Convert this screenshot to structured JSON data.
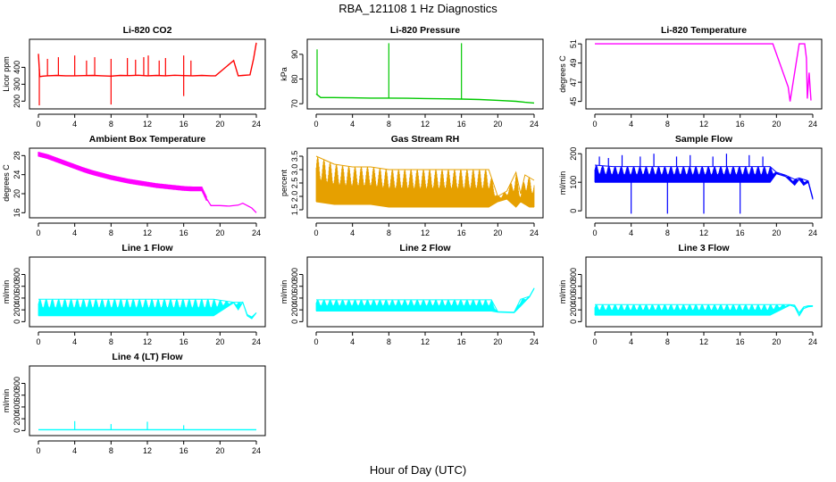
{
  "title": "RBA_121108  1 Hz Diagnostics",
  "xlabel": "Hour of Day (UTC)",
  "colors": {
    "red": "#ff0000",
    "green": "#00c800",
    "magenta": "#ff00ff",
    "orange": "#e6a000",
    "blue": "#0000ff",
    "cyan": "#00ffff"
  },
  "chart_data": [
    {
      "type": "line",
      "title": "Li-820 CO2",
      "ylabel": "Licor ppm",
      "color": "#ff0000",
      "xlim": [
        0,
        24
      ],
      "ylim": [
        170,
        550
      ],
      "xticks": [
        "0",
        "4",
        "8",
        "12",
        "16",
        "20",
        "24"
      ],
      "yticks": [
        "200",
        "300",
        "400"
      ],
      "ytick_values": [
        200,
        300,
        400
      ],
      "x": [
        0,
        0.15,
        0.5,
        1,
        2,
        3,
        4,
        5,
        6,
        7,
        8,
        9,
        10,
        11,
        12,
        13,
        14,
        15,
        16,
        17,
        18,
        19,
        19.5,
        21.5,
        22,
        22.5,
        23.3,
        23.7,
        24
      ],
      "y": [
        480,
        345,
        348,
        350,
        352,
        350,
        350,
        351,
        352,
        350,
        348,
        352,
        351,
        353,
        350,
        352,
        350,
        353,
        351,
        350,
        352,
        350,
        350,
        440,
        350,
        352,
        355,
        450,
        545
      ],
      "spikes_high": [
        [
          1.0,
          450
        ],
        [
          2.2,
          460
        ],
        [
          4.0,
          470
        ],
        [
          5.3,
          440
        ],
        [
          6.2,
          460
        ],
        [
          8.0,
          450
        ],
        [
          9.8,
          455
        ],
        [
          10.7,
          445
        ],
        [
          11.6,
          460
        ],
        [
          12.1,
          470
        ],
        [
          13.3,
          440
        ],
        [
          14.0,
          455
        ],
        [
          16.0,
          470
        ],
        [
          16.8,
          440
        ]
      ],
      "spikes_low": [
        [
          0.1,
          175
        ],
        [
          8.0,
          180
        ],
        [
          16.0,
          230
        ]
      ]
    },
    {
      "type": "line",
      "title": "Li-820 Pressure",
      "ylabel": "kPa",
      "color": "#00c800",
      "xlim": [
        0,
        24
      ],
      "ylim": [
        69,
        95
      ],
      "xticks": [
        "0",
        "4",
        "8",
        "12",
        "16",
        "20",
        "24"
      ],
      "yticks": [
        "70",
        "80",
        "90"
      ],
      "ytick_values": [
        70,
        80,
        90
      ],
      "x": [
        0,
        0.5,
        2,
        4,
        6,
        8,
        10,
        12,
        14,
        16,
        18,
        20,
        22,
        23,
        24
      ],
      "y": [
        74,
        72.5,
        72.5,
        72.4,
        72.3,
        72.3,
        72.2,
        72.1,
        72.0,
        71.9,
        71.7,
        71.4,
        71.0,
        70.6,
        70.3
      ],
      "spikes_high": [
        [
          0.1,
          92
        ],
        [
          8.0,
          94.5
        ],
        [
          16.0,
          94.5
        ]
      ],
      "spikes_low": []
    },
    {
      "type": "line",
      "title": "Li-820 Temperature",
      "ylabel": "degrees C",
      "color": "#ff00ff",
      "xlim": [
        0,
        24
      ],
      "ylim": [
        44.5,
        51.2
      ],
      "xticks": [
        "0",
        "4",
        "8",
        "12",
        "16",
        "20",
        "24"
      ],
      "yticks": [
        "45",
        "47",
        "49",
        "51"
      ],
      "ytick_values": [
        45,
        47,
        49,
        51
      ],
      "x": [
        0,
        4,
        8,
        12,
        16,
        19.6,
        21.3,
        21.5,
        22.5,
        23.1,
        23.3,
        23.4,
        23.6,
        23.8
      ],
      "y": [
        51,
        51,
        51,
        51,
        51,
        51,
        46.5,
        45.0,
        51.0,
        51.0,
        49.5,
        45.3,
        48.0,
        45.1
      ],
      "spikes_high": [],
      "spikes_low": []
    },
    {
      "type": "line",
      "title": "Ambient Box Temperature",
      "ylabel": "degrees C",
      "color": "#ff00ff",
      "xlim": [
        0,
        24
      ],
      "ylim": [
        15.5,
        29
      ],
      "xticks": [
        "0",
        "4",
        "8",
        "12",
        "16",
        "20",
        "24"
      ],
      "yticks": [
        "16",
        "20",
        "24",
        "28"
      ],
      "ytick_values": [
        16,
        20,
        24,
        28
      ],
      "x": [
        0,
        1,
        2,
        3,
        4,
        5,
        6,
        7,
        8,
        9,
        10,
        11,
        12,
        13,
        14,
        15,
        16,
        17,
        18,
        18.5,
        19,
        20,
        21,
        22,
        22.5,
        23,
        23.5,
        24
      ],
      "y": [
        28.3,
        27.8,
        27.1,
        26.4,
        25.7,
        25.0,
        24.4,
        23.9,
        23.4,
        23.0,
        22.6,
        22.3,
        22.0,
        21.7,
        21.5,
        21.3,
        21.1,
        21.0,
        21.0,
        19.0,
        17.5,
        17.5,
        17.4,
        17.6,
        18.0,
        17.5,
        17.0,
        16.0
      ],
      "band": 1.0
    },
    {
      "type": "line",
      "title": "Gas Stream RH",
      "ylabel": "percent",
      "color": "#e6a000",
      "xlim": [
        0,
        24
      ],
      "ylim": [
        1.3,
        3.7
      ],
      "xticks": [
        "0",
        "4",
        "8",
        "12",
        "16",
        "20",
        "24"
      ],
      "yticks": [
        "1.5",
        "2.0",
        "2.5",
        "3.0",
        "3.5"
      ],
      "ytick_values": [
        1.5,
        2.0,
        2.5,
        3.0,
        3.5
      ],
      "x": [
        0,
        2,
        4,
        6,
        8,
        10,
        12,
        14,
        16,
        18,
        19,
        20,
        21,
        22,
        22.5,
        23,
        23.5,
        24
      ],
      "y_low": [
        1.8,
        1.7,
        1.7,
        1.7,
        1.6,
        1.6,
        1.6,
        1.6,
        1.6,
        1.6,
        1.6,
        1.8,
        1.9,
        1.6,
        1.8,
        1.7,
        1.6,
        1.6
      ],
      "y_high": [
        3.5,
        3.2,
        3.1,
        3.1,
        3.0,
        3.0,
        3.0,
        3.0,
        3.0,
        3.0,
        3.0,
        2.0,
        2.2,
        2.9,
        2.1,
        2.8,
        2.7,
        2.6
      ]
    },
    {
      "type": "line",
      "title": "Sample Flow",
      "ylabel": "ml/min",
      "color": "#0000ff",
      "xlim": [
        0,
        24
      ],
      "ylim": [
        -15,
        210
      ],
      "xticks": [
        "0",
        "4",
        "8",
        "12",
        "16",
        "20",
        "24"
      ],
      "yticks": [
        "0",
        "100",
        "200"
      ],
      "ytick_values": [
        0,
        100,
        200
      ],
      "x": [
        0,
        2,
        4,
        6,
        8,
        10,
        12,
        14,
        16,
        18,
        19.3,
        20,
        21,
        22,
        22.5,
        23,
        23.5,
        24
      ],
      "y_low": [
        100,
        100,
        100,
        100,
        100,
        100,
        100,
        100,
        100,
        100,
        100,
        130,
        120,
        90,
        110,
        90,
        100,
        40
      ],
      "y_high": [
        160,
        155,
        155,
        155,
        155,
        155,
        155,
        155,
        155,
        155,
        155,
        135,
        125,
        110,
        115,
        110,
        105,
        45
      ],
      "spikes_high": [
        [
          0.5,
          190
        ],
        [
          1.5,
          185
        ],
        [
          3,
          195
        ],
        [
          5,
          190
        ],
        [
          6.5,
          200
        ],
        [
          9,
          190
        ],
        [
          10.5,
          195
        ],
        [
          13,
          190
        ],
        [
          14.5,
          200
        ],
        [
          17,
          195
        ],
        [
          18.5,
          190
        ]
      ],
      "spikes_low": [
        [
          4.0,
          -10
        ],
        [
          8.0,
          -10
        ],
        [
          12.0,
          -10
        ],
        [
          16.0,
          -10
        ]
      ]
    },
    {
      "type": "line",
      "title": "Line 1 Flow",
      "ylabel": "ml/min",
      "color": "#00ffff",
      "xlim": [
        0,
        24
      ],
      "ylim": [
        -40,
        1050
      ],
      "xticks": [
        "0",
        "4",
        "8",
        "12",
        "16",
        "20",
        "24"
      ],
      "yticks": [
        "0",
        "200",
        "400",
        "600",
        "800"
      ],
      "ytick_values": [
        0,
        200,
        400,
        600,
        800
      ],
      "x": [
        0,
        4,
        8,
        12,
        16,
        19.3,
        21.5,
        22,
        22.5,
        23,
        23.5,
        24
      ],
      "y_low": [
        100,
        100,
        100,
        100,
        100,
        100,
        320,
        200,
        330,
        100,
        50,
        150
      ],
      "y_high": [
        380,
        380,
        380,
        380,
        380,
        380,
        330,
        330,
        330,
        120,
        80,
        150
      ]
    },
    {
      "type": "line",
      "title": "Line 2 Flow",
      "ylabel": "ml/min",
      "color": "#00ffff",
      "xlim": [
        0,
        24
      ],
      "ylim": [
        -40,
        1050
      ],
      "xticks": [
        "0",
        "4",
        "8",
        "12",
        "16",
        "20",
        "24"
      ],
      "yticks": [
        "0",
        "200",
        "400",
        "600",
        "800"
      ],
      "ytick_values": [
        0,
        200,
        400,
        600,
        800
      ],
      "x": [
        0,
        4,
        8,
        12,
        16,
        19.3,
        20,
        21.8,
        22.5,
        23.5,
        24
      ],
      "y_low": [
        180,
        180,
        180,
        180,
        180,
        180,
        160,
        150,
        260,
        420,
        560
      ],
      "y_high": [
        370,
        370,
        370,
        370,
        370,
        370,
        170,
        160,
        380,
        430,
        570
      ]
    },
    {
      "type": "line",
      "title": "Line 3 Flow",
      "ylabel": "ml/min",
      "color": "#00ffff",
      "xlim": [
        0,
        24
      ],
      "ylim": [
        -40,
        1050
      ],
      "xticks": [
        "0",
        "4",
        "8",
        "12",
        "16",
        "20",
        "24"
      ],
      "yticks": [
        "0",
        "200",
        "400",
        "600",
        "800"
      ],
      "ytick_values": [
        0,
        200,
        400,
        600,
        800
      ],
      "x": [
        0,
        4,
        8,
        12,
        16,
        19.3,
        21.5,
        22,
        22.5,
        23,
        23.5,
        24
      ],
      "y_low": [
        110,
        110,
        110,
        110,
        110,
        110,
        280,
        250,
        100,
        220,
        250,
        260
      ],
      "y_high": [
        290,
        290,
        290,
        290,
        290,
        290,
        290,
        280,
        150,
        250,
        270,
        270
      ]
    },
    {
      "type": "line",
      "title": "Line 4 (LT) Flow",
      "ylabel": "ml/min",
      "color": "#00ffff",
      "xlim": [
        0,
        24
      ],
      "ylim": [
        -40,
        1050
      ],
      "xticks": [
        "0",
        "4",
        "8",
        "12",
        "16",
        "20",
        "24"
      ],
      "yticks": [
        "0",
        "200",
        "400",
        "600",
        "800"
      ],
      "ytick_values": [
        0,
        200,
        400,
        600,
        800
      ],
      "x": [
        0,
        4,
        8,
        12,
        16,
        20,
        24
      ],
      "y": [
        15,
        15,
        15,
        15,
        15,
        15,
        15
      ],
      "spikes_high": [
        [
          4.0,
          160
        ],
        [
          8.0,
          110
        ],
        [
          12.0,
          150
        ],
        [
          16.0,
          90
        ]
      ],
      "spikes_low": []
    }
  ]
}
